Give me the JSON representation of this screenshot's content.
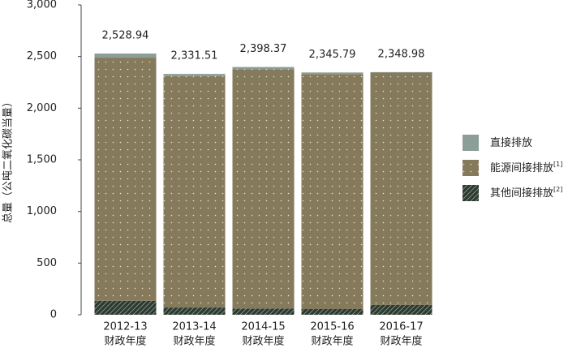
{
  "chart_data": {
    "type": "stacked-bar",
    "y_label": "总量（公吨二氧化碳当量）",
    "categories": [
      [
        "2012-13",
        "财政年度"
      ],
      [
        "2013-14",
        "财政年度"
      ],
      [
        "2014-15",
        "财政年度"
      ],
      [
        "2015-16",
        "财政年度"
      ],
      [
        "2016-17",
        "财政年度"
      ]
    ],
    "series": [
      {
        "name": "其他间接排放",
        "footnote": "[2]",
        "color": "#2c3a31",
        "pattern": "hatch",
        "values": [
          135,
          70,
          60,
          55,
          95
        ]
      },
      {
        "name": "能源间接排放",
        "footnote": "[1]",
        "color": "#857a5b",
        "pattern": "dots",
        "values": [
          2353.94,
          2241.51,
          2318.37,
          2275.79,
          2248.98
        ]
      },
      {
        "name": "直接排放",
        "color": "#8c9e98",
        "pattern": "none",
        "values": [
          40,
          20,
          20,
          15,
          5
        ]
      }
    ],
    "totals": [
      2528.94,
      2331.51,
      2398.37,
      2345.79,
      2348.98
    ],
    "total_labels": [
      "2,528.94",
      "2,331.51",
      "2,398.37",
      "2,345.79",
      "2,348.98"
    ],
    "ylim": [
      0,
      3000
    ],
    "yticks": [
      0,
      500,
      {
        "value": 1000,
        "label": "1,000"
      },
      {
        "value": 1500,
        "label": "1,500"
      },
      {
        "value": 2000,
        "label": "2,000"
      },
      {
        "value": 2500,
        "label": "2,500"
      },
      {
        "value": 3000,
        "label": "3,000"
      }
    ],
    "legend_position": "right"
  }
}
